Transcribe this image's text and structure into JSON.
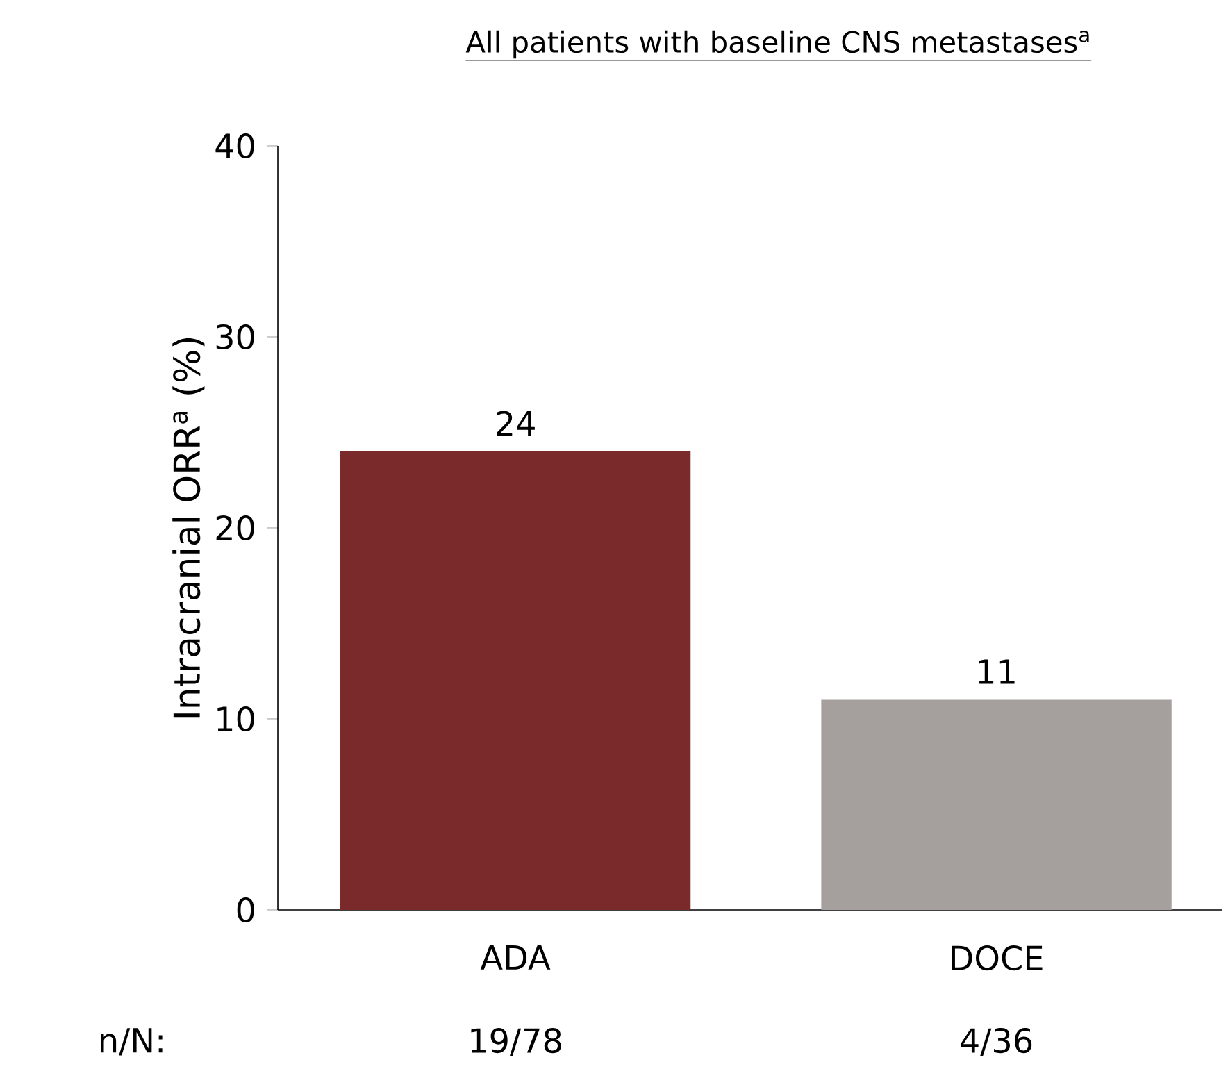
{
  "chart_data": {
    "type": "bar",
    "title": "All patients with baseline CNS metastases$^{a}$",
    "ylabel": "Intracranial ORR$^{a}$ (%)",
    "categories": [
      "ADA",
      "DOCE"
    ],
    "values": [
      24,
      11
    ],
    "colors": [
      "#7a2a2b",
      "#a59f9e"
    ],
    "ylim": [
      0,
      40
    ],
    "yticks": [
      0,
      10,
      20,
      30,
      40
    ],
    "data_labels": true,
    "grid": false,
    "annotations": [
      "n/N:",
      "19/78",
      "4/36"
    ]
  }
}
